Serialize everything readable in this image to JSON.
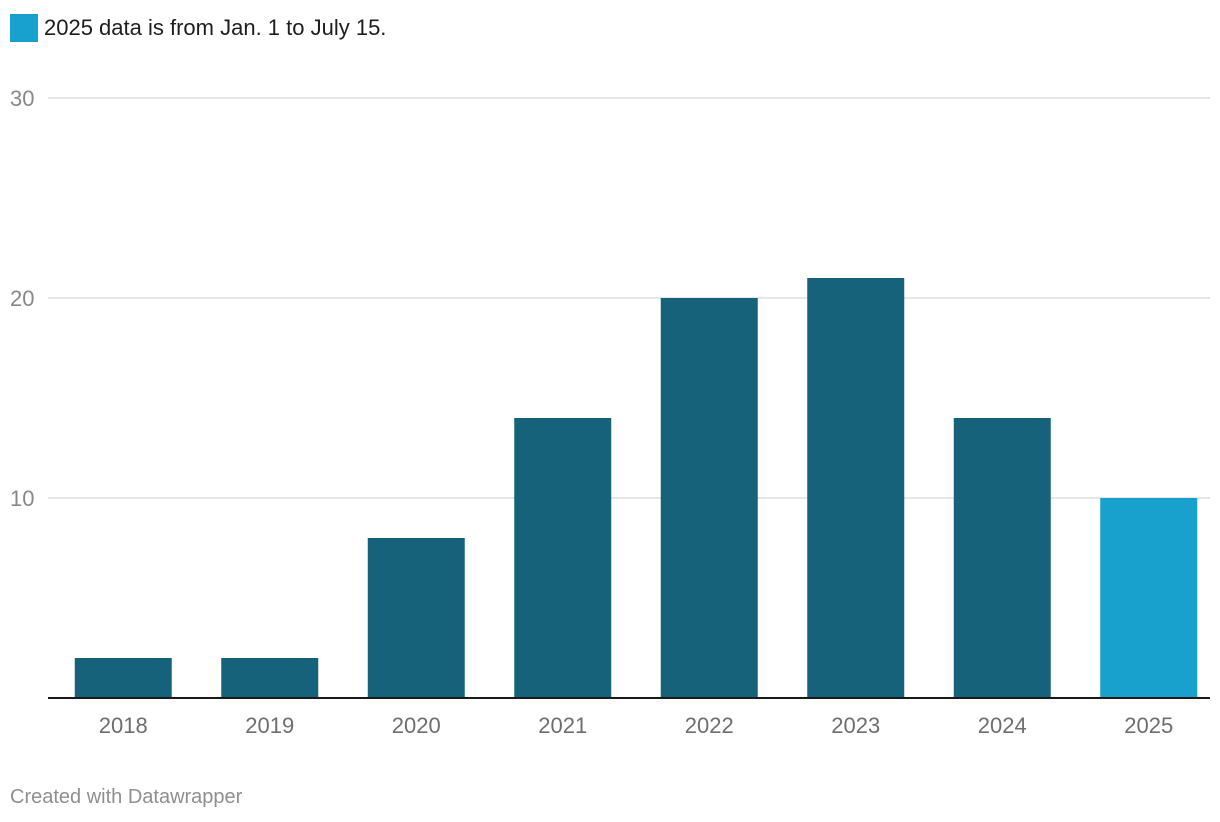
{
  "legend": {
    "label": "2025 data is from Jan. 1 to July 15.",
    "color": "#18a1cd"
  },
  "footer": {
    "credit": "Created with Datawrapper"
  },
  "chart_data": {
    "type": "bar",
    "title": "",
    "xlabel": "",
    "ylabel": "",
    "categories": [
      "2018",
      "2019",
      "2020",
      "2021",
      "2022",
      "2023",
      "2024",
      "2025"
    ],
    "values": [
      2,
      2,
      8,
      14,
      20,
      21,
      14,
      10
    ],
    "highlight": [
      "2025"
    ],
    "ylim": [
      0,
      30
    ],
    "yticks": [
      10,
      20,
      30
    ],
    "grid": true,
    "colors": {
      "default": "#17627b",
      "highlight": "#18a1cd",
      "grid": "#dedede",
      "axis": "#1a1a1a",
      "tick_label": "#888888"
    }
  }
}
